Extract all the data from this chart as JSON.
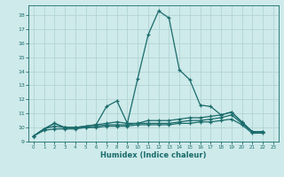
{
  "xlabel": "Humidex (Indice chaleur)",
  "bg_color": "#ceeaea",
  "grid_color": "#aed0d0",
  "line_color": "#1a6b6b",
  "xlim": [
    -0.5,
    23.5
  ],
  "ylim": [
    9.0,
    18.7
  ],
  "yticks": [
    9,
    10,
    11,
    12,
    13,
    14,
    15,
    16,
    17,
    18
  ],
  "xticks": [
    0,
    1,
    2,
    3,
    4,
    5,
    6,
    7,
    8,
    9,
    10,
    11,
    12,
    13,
    14,
    15,
    16,
    17,
    18,
    19,
    20,
    21,
    22,
    23
  ],
  "series": [
    [
      9.4,
      9.9,
      10.3,
      10.0,
      10.0,
      10.1,
      10.2,
      11.5,
      11.9,
      10.3,
      13.5,
      16.6,
      18.3,
      17.8,
      14.1,
      13.4,
      11.6,
      11.5,
      10.9,
      11.1,
      10.4,
      9.7,
      9.7
    ],
    [
      9.4,
      9.9,
      10.3,
      10.0,
      10.0,
      10.1,
      10.2,
      10.3,
      10.4,
      10.3,
      10.3,
      10.5,
      10.5,
      10.5,
      10.6,
      10.7,
      10.7,
      10.8,
      10.9,
      11.1,
      10.4,
      9.7,
      9.7
    ],
    [
      9.4,
      9.9,
      10.1,
      10.0,
      10.0,
      10.0,
      10.1,
      10.2,
      10.2,
      10.2,
      10.3,
      10.3,
      10.3,
      10.3,
      10.4,
      10.5,
      10.5,
      10.6,
      10.7,
      10.9,
      10.3,
      9.7,
      9.7
    ],
    [
      9.4,
      9.8,
      9.9,
      9.9,
      9.9,
      10.0,
      10.0,
      10.1,
      10.1,
      10.1,
      10.2,
      10.2,
      10.2,
      10.2,
      10.3,
      10.3,
      10.4,
      10.4,
      10.5,
      10.6,
      10.2,
      9.6,
      9.6
    ]
  ]
}
